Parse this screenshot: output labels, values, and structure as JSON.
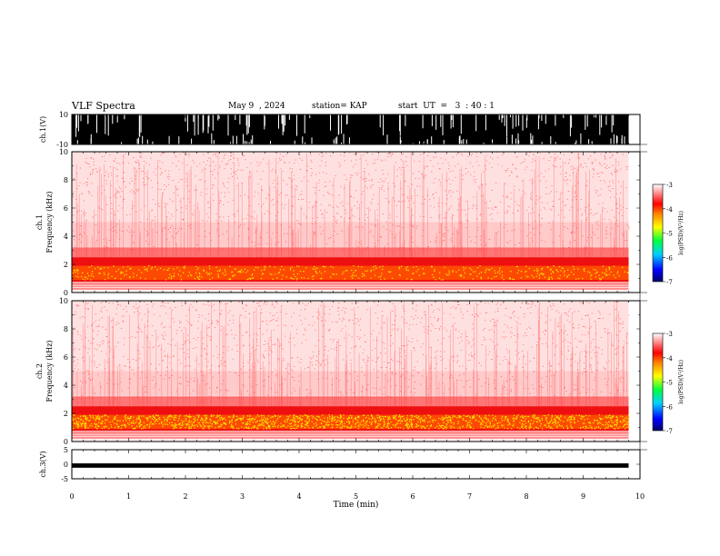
{
  "header": {
    "title": "VLF Spectra",
    "date": "May 9  , 2024",
    "station": "station= KAP",
    "start": "start  UT  =   3  : 40 : 1"
  },
  "chart_data": [
    {
      "type": "area",
      "name": "ch1-waveform",
      "ylabel": "ch.1(V)",
      "ylim": [
        -10,
        10
      ],
      "yticks": [
        "10",
        "-10"
      ],
      "xlim": [
        0,
        10
      ],
      "fill": "#000000"
    },
    {
      "type": "heatmap",
      "name": "ch1-spectrogram",
      "ylabel_top": "ch.1",
      "ylabel": "Frequency  (kHz)",
      "ylim": [
        0,
        10
      ],
      "yticks": [
        "0",
        "2",
        "4",
        "6",
        "8",
        "10"
      ],
      "xlim": [
        0,
        10
      ],
      "data_end_min": 9.8,
      "colorbar": {
        "label": "log(PSD)(V²/Hz)",
        "range": [
          -7,
          -3
        ],
        "ticks": [
          "-3",
          "-4",
          "-5",
          "-6",
          "-7"
        ]
      }
    },
    {
      "type": "heatmap",
      "name": "ch2-spectrogram",
      "ylabel_top": "ch.2",
      "ylabel": "Frequency  (kHz)",
      "ylim": [
        0,
        10
      ],
      "yticks": [
        "0",
        "2",
        "4",
        "6",
        "8",
        "10"
      ],
      "xlim": [
        0,
        10
      ],
      "data_end_min": 9.8,
      "colorbar": {
        "label": "log(PSD)(V²/Hz)",
        "range": [
          -7,
          -3
        ],
        "ticks": [
          "-3",
          "-4",
          "-5",
          "-6",
          "-7"
        ]
      }
    },
    {
      "type": "line",
      "name": "ch3-waveform",
      "ylabel": "ch.3(V)",
      "ylim": [
        -5,
        5
      ],
      "yticks": [
        "5",
        "0",
        "-5"
      ],
      "xlim": [
        0,
        10
      ],
      "xlabel": "Time  (min)",
      "xticks": [
        "0",
        "1",
        "2",
        "3",
        "4",
        "5",
        "6",
        "7",
        "8",
        "9",
        "10"
      ]
    }
  ]
}
